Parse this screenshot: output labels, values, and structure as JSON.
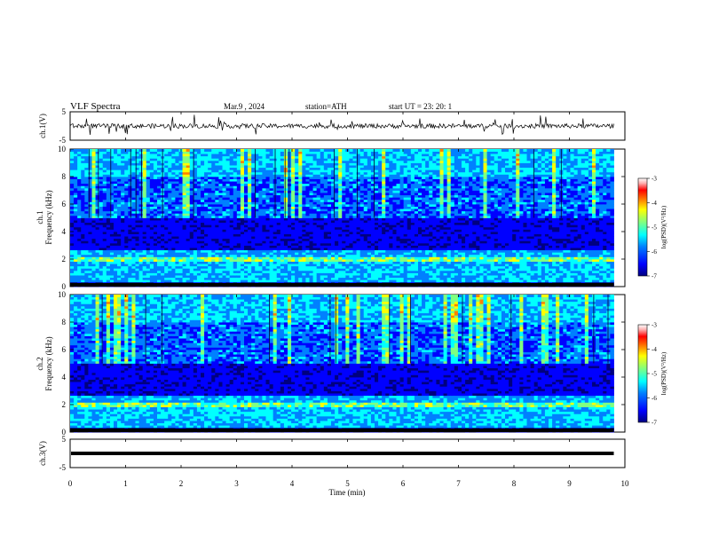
{
  "header": {
    "title": "VLF  Spectra",
    "date": "Mar.9  , 2024",
    "station": "station=ATH",
    "start": "start  UT  =    23: 20: 1"
  },
  "colors": {
    "background": "#ffffff",
    "axis": "#000000",
    "colormap": [
      "#00007f",
      "#0000ff",
      "#0080ff",
      "#00ffff",
      "#80ff80",
      "#ffff00",
      "#ff8000",
      "#ff0000",
      "#7f0000",
      "#ffffff"
    ]
  },
  "chart_data": {
    "type": "spectrogram",
    "x_axis": {
      "label": "Time  (min)",
      "range": [
        0,
        10
      ],
      "ticks": [
        0,
        1,
        2,
        3,
        4,
        5,
        6,
        7,
        8,
        9,
        10
      ],
      "data_end": 9.8
    },
    "panels": [
      {
        "id": "ch1-waveform",
        "type": "line",
        "ylabel": "ch.1(V)",
        "yrange": [
          -5,
          5
        ],
        "ticks": [
          -5,
          5
        ],
        "tick_labels": [
          "-5",
          "5"
        ],
        "baseline": 0
      },
      {
        "id": "ch1-spectrogram",
        "type": "heatmap",
        "ylabel_top": "ch.1",
        "ylabel": "Frequency  (kHz)",
        "yrange": [
          0,
          10
        ],
        "ticks": [
          0,
          2,
          4,
          6,
          8,
          10
        ],
        "tick_labels": [
          "0",
          "2",
          "4",
          "6",
          "8",
          "10"
        ],
        "colorbar": {
          "label": "log(PSD)(V²/Hz)",
          "range": [
            -7,
            -3
          ],
          "ticks": [
            "-3",
            "-4",
            "-5",
            "-6",
            "-7"
          ]
        },
        "features": {
          "strong_band_khz": [
            1.8,
            2.2
          ],
          "quiet_band_khz": [
            2.6,
            5.0
          ],
          "sferic_band_khz": [
            5.0,
            10.0
          ]
        }
      },
      {
        "id": "ch2-spectrogram",
        "type": "heatmap",
        "ylabel_top": "ch.2",
        "ylabel": "Frequency  (kHz)",
        "yrange": [
          0,
          10
        ],
        "ticks": [
          0,
          2,
          4,
          6,
          8,
          10
        ],
        "tick_labels": [
          "0",
          "2",
          "4",
          "6",
          "8",
          "10"
        ],
        "colorbar": {
          "label": "log(PSD)(V²/Hz)",
          "range": [
            -7,
            -3
          ],
          "ticks": [
            "-3",
            "-4",
            "-5",
            "-6",
            "-7"
          ]
        },
        "features": {
          "strong_band_khz": [
            1.8,
            2.2
          ],
          "quiet_band_khz": [
            2.6,
            5.0
          ],
          "sferic_band_khz": [
            5.0,
            10.0
          ]
        }
      },
      {
        "id": "ch3-waveform",
        "type": "line",
        "ylabel": "ch.3(V)",
        "yrange": [
          -5,
          5
        ],
        "ticks": [
          -5,
          5
        ],
        "tick_labels": [
          "-5",
          "5"
        ],
        "baseline": 0
      }
    ]
  }
}
